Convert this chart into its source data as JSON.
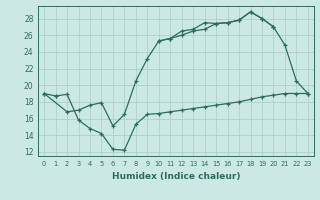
{
  "bg_color": "#cce8e2",
  "line_color": "#2a6e62",
  "grid_color": "#a8ccc6",
  "xlabel": "Humidex (Indice chaleur)",
  "xlim": [
    -0.5,
    23.5
  ],
  "ylim": [
    11.5,
    29.5
  ],
  "xticks": [
    0,
    1,
    2,
    3,
    4,
    5,
    6,
    7,
    8,
    9,
    10,
    11,
    12,
    13,
    14,
    15,
    16,
    17,
    18,
    19,
    20,
    21,
    22,
    23
  ],
  "yticks": [
    12,
    14,
    16,
    18,
    20,
    22,
    24,
    26,
    28
  ],
  "s1_x": [
    0,
    1,
    10,
    11,
    12,
    13,
    14,
    15,
    16,
    17,
    18,
    19,
    20,
    21,
    22,
    23
  ],
  "s1_y": [
    19.0,
    18.7,
    25.3,
    25.6,
    26.5,
    26.7,
    27.5,
    27.4,
    27.5,
    27.8,
    28.8,
    28.0,
    27.0,
    24.8,
    20.5,
    19.0
  ],
  "s2_x": [
    0,
    2,
    3,
    4,
    5,
    6,
    7,
    8,
    9,
    10,
    11,
    12,
    13,
    14,
    15,
    16,
    17,
    18,
    19,
    20
  ],
  "s2_y": [
    19.0,
    16.8,
    17.0,
    17.6,
    17.9,
    15.1,
    16.5,
    20.5,
    23.2,
    25.3,
    25.6,
    26.0,
    26.5,
    26.7,
    27.4,
    27.5,
    27.8,
    28.8,
    28.0,
    27.0
  ],
  "s3_x": [
    1,
    2,
    3,
    4,
    5,
    6,
    7,
    8,
    9,
    10,
    11,
    12,
    13,
    14,
    15,
    16,
    17,
    18,
    19,
    20,
    21,
    22,
    23
  ],
  "s3_y": [
    18.7,
    18.9,
    15.8,
    14.8,
    14.2,
    12.3,
    12.2,
    15.3,
    16.5,
    16.6,
    16.8,
    17.0,
    17.2,
    17.4,
    17.6,
    17.8,
    18.0,
    18.3,
    18.6,
    18.8,
    19.0,
    19.0,
    19.0
  ]
}
